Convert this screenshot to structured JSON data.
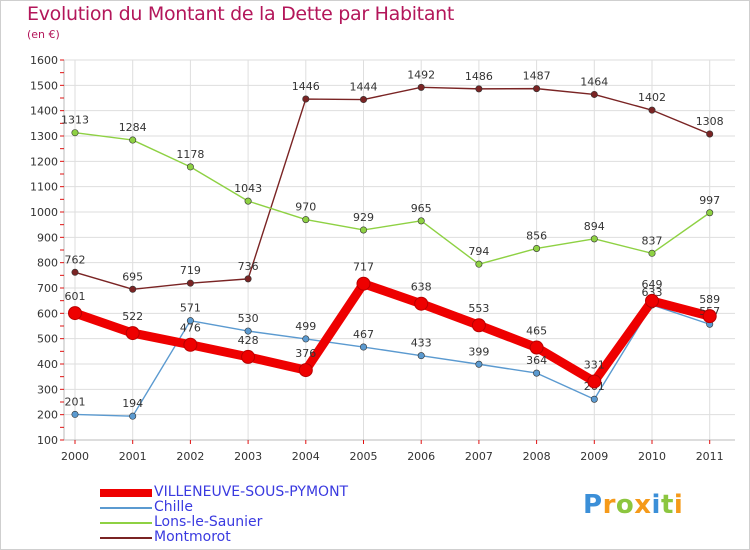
{
  "title": "Evolution du Montant de la Dette par Habitant",
  "unit": "(en €)",
  "colors": {
    "title": "#b3165a",
    "grid": "#dedede",
    "axis": "#bbbbbb",
    "tick_red": "#e01010",
    "legend_text": "#3a3ae0"
  },
  "chart_data": {
    "type": "line",
    "title": "Evolution du Montant de la Dette par Habitant",
    "ylabel": "(en €)",
    "xlabel": "",
    "ylim": [
      100,
      1600
    ],
    "yticks": [
      "100",
      "200",
      "300",
      "400",
      "500",
      "600",
      "700",
      "800",
      "900",
      "1000",
      "1100",
      "1200",
      "1300",
      "1400",
      "1500",
      "1600"
    ],
    "ytick_values": [
      100,
      200,
      300,
      400,
      500,
      600,
      700,
      800,
      900,
      1000,
      1100,
      1200,
      1300,
      1400,
      1500,
      1600
    ],
    "categories": [
      "2000",
      "2001",
      "2002",
      "2003",
      "2004",
      "2005",
      "2006",
      "2007",
      "2008",
      "2009",
      "2010",
      "2011"
    ],
    "grid": true,
    "series": [
      {
        "name": "Montmorot",
        "color": "#7a2424",
        "values": [
          762,
          695,
          719,
          736,
          1446,
          1444,
          1492,
          1486,
          1487,
          1464,
          1402,
          1308
        ],
        "labels": [
          "762",
          "695",
          "719",
          "736",
          "1446",
          "1444",
          "1492",
          "1486",
          "1487",
          "1464",
          "1402",
          "1308"
        ]
      },
      {
        "name": "Lons-le-Saunier",
        "color": "#8ed143",
        "values": [
          1313,
          1284,
          1178,
          1043,
          970,
          929,
          965,
          794,
          856,
          894,
          837,
          997
        ],
        "labels": [
          "1313",
          "1284",
          "1178",
          "1043",
          "970",
          "929",
          "965",
          "794",
          "856",
          "894",
          "837",
          "997"
        ]
      },
      {
        "name": "Chille",
        "color": "#5b9ad0",
        "values": [
          201,
          194,
          571,
          530,
          499,
          467,
          433,
          399,
          364,
          261,
          633,
          557
        ],
        "labels": [
          "201",
          "194",
          "571",
          "530",
          "499",
          "467",
          "433",
          "399",
          "364",
          "261",
          "633",
          "557"
        ]
      },
      {
        "name": "VILLENEUVE-SOUS-PYMONT",
        "color": "#ee0000",
        "values": [
          601,
          522,
          476,
          428,
          376,
          717,
          638,
          553,
          465,
          331,
          649,
          589
        ],
        "labels": [
          "601",
          "522",
          "476",
          "428",
          "376",
          "717",
          "638",
          "553",
          "465",
          "331",
          "649",
          "589"
        ]
      }
    ],
    "legend": [
      "VILLENEUVE-SOUS-PYMONT",
      "Chille",
      "Lons-le-Saunier",
      "Montmorot"
    ],
    "legend_position": "bottom-left"
  },
  "legend_items": [
    {
      "label": "VILLENEUVE-SOUS-PYMONT",
      "color": "#ee0000",
      "thick": true
    },
    {
      "label": "Chille",
      "color": "#5b9ad0",
      "thick": false
    },
    {
      "label": "Lons-le-Saunier",
      "color": "#8ed143",
      "thick": false
    },
    {
      "label": "Montmorot",
      "color": "#7a2424",
      "thick": false
    }
  ],
  "logo": {
    "letters": [
      "P",
      "r",
      "o",
      "x",
      "i",
      "t",
      "i"
    ],
    "colors": [
      "#3b8fd8",
      "#f59a1a",
      "#8cc63f",
      "#f59a1a",
      "#3b8fd8",
      "#8cc63f",
      "#f59a1a"
    ]
  }
}
